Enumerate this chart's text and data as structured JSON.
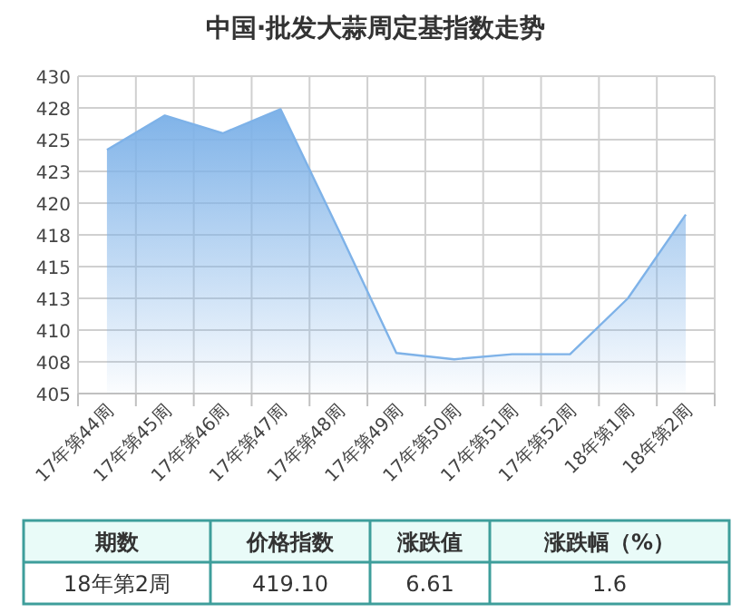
{
  "chart_data": [
    {
      "type": "area",
      "title": "中国·批发大蒜周定基指数走势",
      "categories": [
        "17年第44周",
        "17年第45周",
        "17年第46周",
        "17年第47周",
        "17年第48周",
        "17年第49周",
        "17年第50周",
        "17年第51周",
        "17年第52周",
        "18年第1周",
        "18年第2周"
      ],
      "series": [
        {
          "color": "#7eb2e8",
          "values": [
            424.2,
            426.9,
            425.5,
            427.4,
            417.9,
            408.2,
            407.7,
            408.1,
            408.1,
            412.5,
            419.1
          ]
        }
      ],
      "ylim": [
        405,
        430
      ],
      "yticks": [
        405,
        {
          "value": 407.5,
          "label": "408"
        },
        410,
        {
          "value": 412.5,
          "label": "413"
        },
        415,
        {
          "value": 417.5,
          "label": "418"
        },
        420,
        {
          "value": 422.5,
          "label": "423"
        },
        425,
        {
          "value": 427.5,
          "label": "428"
        },
        430
      ],
      "grid": true
    },
    {
      "type": "other",
      "annotations": [
        "期数",
        "价格指数",
        "涨跌值",
        "涨跌幅（%）",
        "18年第2周",
        "419.10",
        "6.61",
        "1.6"
      ]
    }
  ]
}
